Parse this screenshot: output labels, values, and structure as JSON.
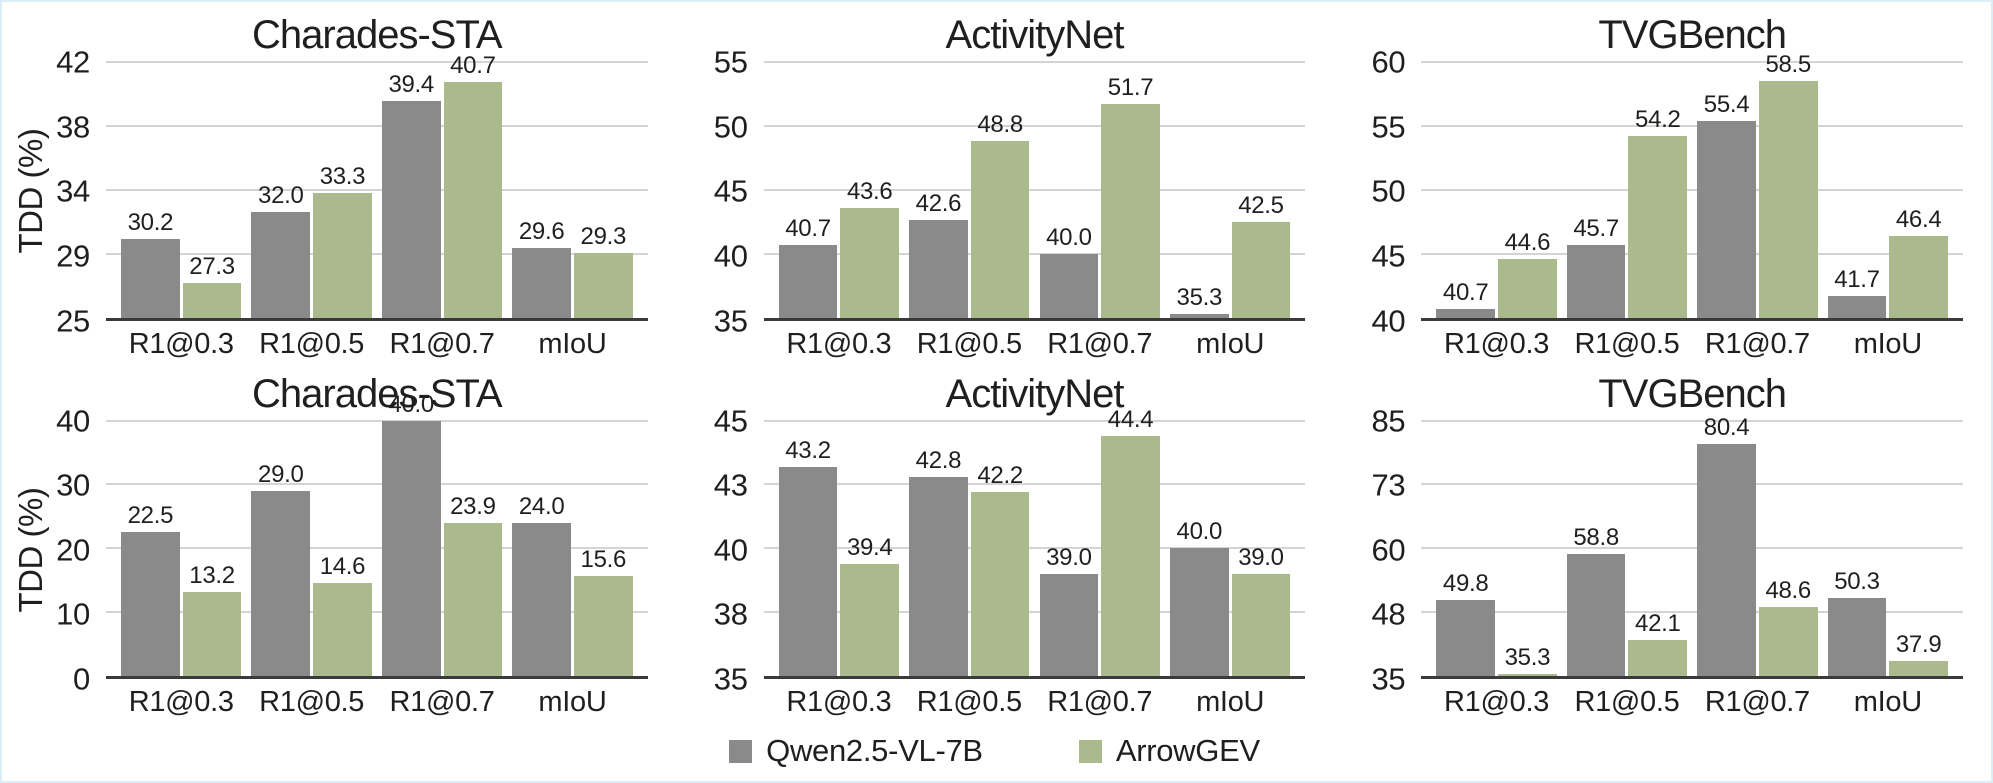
{
  "figure": {
    "description": "Grouped bar chart figure comparing two models on three video temporal grounding benchmarks, two rows of charts",
    "colors": {
      "bar_gray": "#8a8a8a",
      "bar_green": "#aaba8c",
      "gridline": "#d4d4d4",
      "axis": "#3a3a3a",
      "text": "#1f1f1f",
      "page_border": "#dbedf7"
    }
  },
  "legend": {
    "items": [
      {
        "label": "Qwen2.5-VL-7B",
        "color": "#8a8a8a"
      },
      {
        "label": "ArrowGEV",
        "color": "#aaba8c"
      }
    ],
    "position": "bottom-center"
  },
  "chart_data": [
    {
      "type": "bar",
      "title": "Charades-STA",
      "row": 1,
      "ylabel": "TDD (%)",
      "ylim": [
        25,
        42
      ],
      "yticks": [
        "42",
        "38",
        "34",
        "29",
        "25"
      ],
      "grid": true,
      "categories": [
        "R1@0.3",
        "R1@0.5",
        "R1@0.7",
        "mIoU"
      ],
      "series": [
        {
          "name": "Qwen2.5-VL-7B",
          "values": [
            "30.2",
            "32.0",
            "39.4",
            "29.6"
          ]
        },
        {
          "name": "ArrowGEV",
          "values": [
            "27.3",
            "33.3",
            "40.7",
            "29.3"
          ]
        }
      ]
    },
    {
      "type": "bar",
      "title": "ActivityNet",
      "row": 1,
      "ylabel": "",
      "ylim": [
        35,
        55
      ],
      "yticks": [
        "55",
        "50",
        "45",
        "40",
        "35"
      ],
      "grid": true,
      "categories": [
        "R1@0.3",
        "R1@0.5",
        "R1@0.7",
        "mIoU"
      ],
      "series": [
        {
          "name": "Qwen2.5-VL-7B",
          "values": [
            "40.7",
            "42.6",
            "40.0",
            "35.3"
          ]
        },
        {
          "name": "ArrowGEV",
          "values": [
            "43.6",
            "48.8",
            "51.7",
            "42.5"
          ]
        }
      ]
    },
    {
      "type": "bar",
      "title": "TVGBench",
      "row": 1,
      "ylabel": "",
      "ylim": [
        40,
        60
      ],
      "yticks": [
        "60",
        "55",
        "50",
        "45",
        "40"
      ],
      "grid": true,
      "categories": [
        "R1@0.3",
        "R1@0.5",
        "R1@0.7",
        "mIoU"
      ],
      "series": [
        {
          "name": "Qwen2.5-VL-7B",
          "values": [
            "40.7",
            "45.7",
            "55.4",
            "41.7"
          ]
        },
        {
          "name": "ArrowGEV",
          "values": [
            "44.6",
            "54.2",
            "58.5",
            "46.4"
          ]
        }
      ]
    },
    {
      "type": "bar",
      "title": "Charades-STA",
      "row": 2,
      "ylabel": "TDD (%)",
      "ylim": [
        0,
        40
      ],
      "yticks": [
        "40",
        "30",
        "20",
        "10",
        "0"
      ],
      "grid": true,
      "categories": [
        "R1@0.3",
        "R1@0.5",
        "R1@0.7",
        "mIoU"
      ],
      "series": [
        {
          "name": "Qwen2.5-VL-7B",
          "values": [
            "22.5",
            "29.0",
            "40.0",
            "24.0"
          ]
        },
        {
          "name": "ArrowGEV",
          "values": [
            "13.2",
            "14.6",
            "23.9",
            "15.6"
          ]
        }
      ]
    },
    {
      "type": "bar",
      "title": "ActivityNet",
      "row": 2,
      "ylabel": "",
      "ylim": [
        35,
        45
      ],
      "yticks": [
        "45",
        "43",
        "40",
        "38",
        "35"
      ],
      "grid": true,
      "categories": [
        "R1@0.3",
        "R1@0.5",
        "R1@0.7",
        "mIoU"
      ],
      "series": [
        {
          "name": "Qwen2.5-VL-7B",
          "values": [
            "43.2",
            "42.8",
            "39.0",
            "40.0"
          ]
        },
        {
          "name": "ArrowGEV",
          "values": [
            "39.4",
            "42.2",
            "44.4",
            "39.0"
          ]
        }
      ]
    },
    {
      "type": "bar",
      "title": "TVGBench",
      "row": 2,
      "ylabel": "",
      "ylim": [
        35,
        85
      ],
      "yticks": [
        "85",
        "73",
        "60",
        "48",
        "35"
      ],
      "grid": true,
      "categories": [
        "R1@0.3",
        "R1@0.5",
        "R1@0.7",
        "mIoU"
      ],
      "series": [
        {
          "name": "Qwen2.5-VL-7B",
          "values": [
            "49.8",
            "58.8",
            "80.4",
            "50.3"
          ]
        },
        {
          "name": "ArrowGEV",
          "values": [
            "35.3",
            "42.1",
            "48.6",
            "37.9"
          ]
        }
      ]
    }
  ]
}
